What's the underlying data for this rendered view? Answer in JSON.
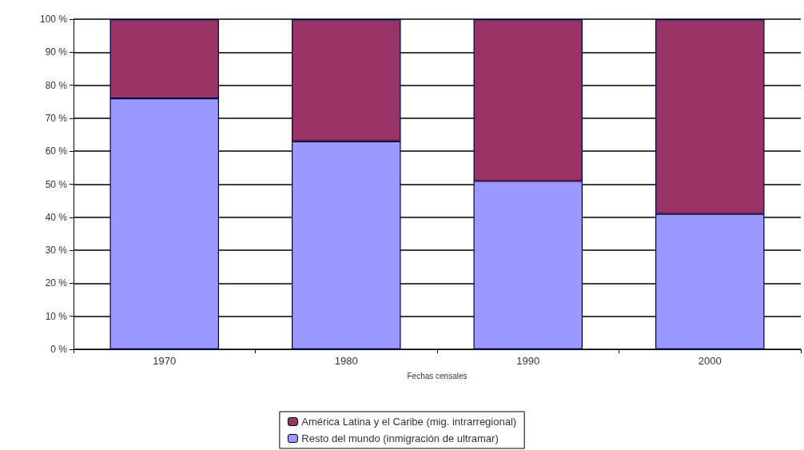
{
  "chart_data": {
    "type": "bar",
    "stacked": true,
    "xlabel": "Fechas censales",
    "categories": [
      "1970",
      "1980",
      "1990",
      "2000"
    ],
    "series": [
      {
        "name": "Resto del mundo (inmigración de ultramar)",
        "color": "#9999ff",
        "values": [
          76,
          63,
          51,
          41
        ]
      },
      {
        "name": "América Latina y el Caribe (mig. intrarregional)",
        "color": "#993366",
        "values": [
          24,
          37,
          49,
          59
        ]
      }
    ],
    "ylim": [
      0,
      100
    ],
    "yticks": [
      {
        "value": 0,
        "label": "0 %"
      },
      {
        "value": 10,
        "label": "10 %"
      },
      {
        "value": 20,
        "label": "20 %"
      },
      {
        "value": 30,
        "label": "30 %"
      },
      {
        "value": 40,
        "label": "40 %"
      },
      {
        "value": 50,
        "label": "50 %"
      },
      {
        "value": 60,
        "label": "60 %"
      },
      {
        "value": 70,
        "label": "70 %"
      },
      {
        "value": 80,
        "label": "80 %"
      },
      {
        "value": 90,
        "label": "90 %"
      },
      {
        "value": 100,
        "label": "100 %"
      }
    ],
    "grid": "y",
    "legend": "bottom"
  }
}
